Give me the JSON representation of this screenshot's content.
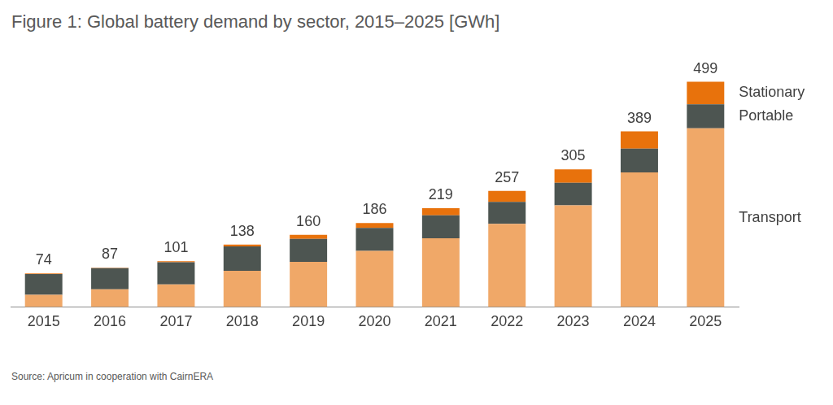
{
  "chart_data": {
    "type": "bar",
    "title": "Figure 1: Global battery demand by sector, 2015–2025 [GWh]",
    "source": "Source: Apricum in cooperation with CairnERA",
    "categories": [
      "2015",
      "2016",
      "2017",
      "2018",
      "2019",
      "2020",
      "2021",
      "2022",
      "2023",
      "2024",
      "2025"
    ],
    "series": [
      {
        "name": "Transport",
        "color": "#f0a868",
        "values": [
          27,
          39,
          50,
          80,
          100,
          124,
          152,
          184,
          225,
          298,
          396
        ]
      },
      {
        "name": "Portable",
        "color": "#4d5551",
        "values": [
          46,
          47,
          49,
          54,
          51,
          51,
          51,
          49,
          50,
          53,
          53
        ]
      },
      {
        "name": "Stationary",
        "color": "#e8720c",
        "values": [
          1,
          1,
          2,
          4,
          9,
          11,
          16,
          24,
          30,
          38,
          50
        ]
      }
    ],
    "totals": [
      74,
      87,
      101,
      138,
      160,
      186,
      219,
      257,
      305,
      389,
      499
    ],
    "stacked": true,
    "ylim": [
      0,
      500
    ],
    "tick_labels": "x",
    "grid": false,
    "legend": "right"
  }
}
